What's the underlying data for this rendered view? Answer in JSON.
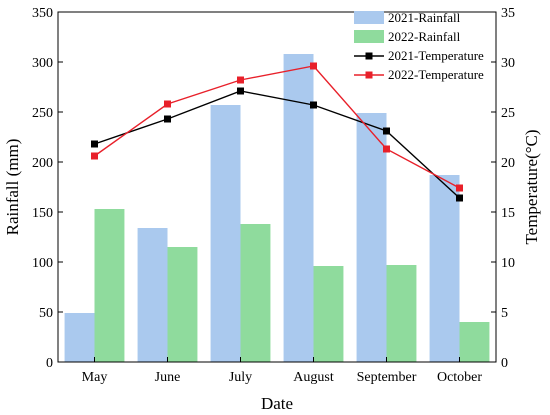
{
  "chart_data": {
    "type": "bar",
    "categories": [
      "May",
      "June",
      "July",
      "August",
      "September",
      "October"
    ],
    "xlabel": "Date",
    "ylabel": "Rainfall (mm)",
    "ylabel_right": "Temperature(°C)",
    "ylim": [
      0,
      350
    ],
    "ylim_right": [
      0,
      35
    ],
    "yticks": [
      0,
      50,
      100,
      150,
      200,
      250,
      300,
      350
    ],
    "yticks_right": [
      0,
      5,
      10,
      15,
      20,
      25,
      30,
      35
    ],
    "grid": false,
    "legend_position": "top-right",
    "series": [
      {
        "name": "2021-Rainfall",
        "kind": "bar",
        "axis": "left",
        "color": "#aac9ee",
        "values": [
          49,
          134,
          257,
          308,
          249,
          187
        ]
      },
      {
        "name": "2022-Rainfall",
        "kind": "bar",
        "axis": "left",
        "color": "#8fdb9d",
        "values": [
          153,
          115,
          138,
          96,
          97,
          40
        ]
      },
      {
        "name": "2021-Temperature",
        "kind": "line",
        "axis": "right",
        "color": "#000000",
        "values": [
          21.8,
          24.3,
          27.1,
          25.7,
          23.1,
          16.4
        ]
      },
      {
        "name": "2022-Temperature",
        "kind": "line",
        "axis": "right",
        "color": "#e8202a",
        "values": [
          20.6,
          25.8,
          28.2,
          29.6,
          21.3,
          17.4
        ]
      }
    ]
  }
}
